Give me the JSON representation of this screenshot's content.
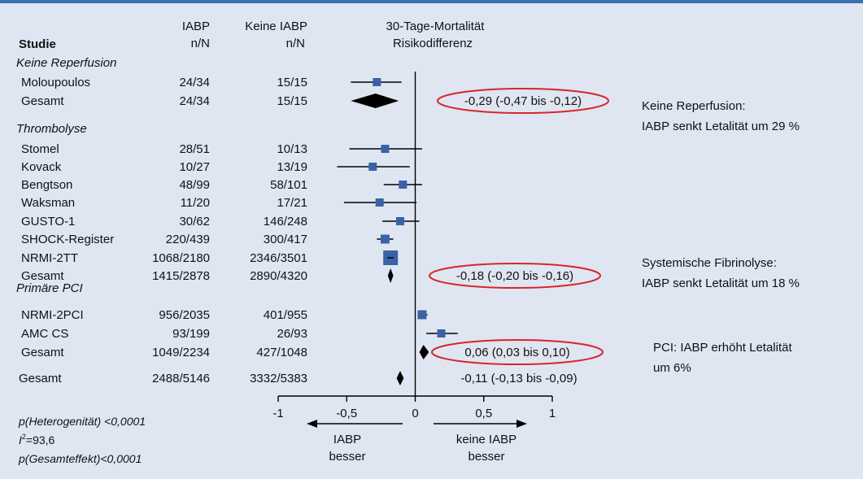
{
  "chart_data": {
    "type": "forest",
    "header": {
      "study": "Studie",
      "iabp_title": "IABP",
      "iabp_sub": "n/N",
      "noiabp_title": "Keine IABP",
      "noiabp_sub": "n/N",
      "effect_title": "30-Tage-Mortalität",
      "effect_sub": "Risikodifferenz"
    },
    "groups": [
      {
        "label": "Keine Reperfusion",
        "rows": [
          {
            "study": "Moloupoulos",
            "iabp": "24/34",
            "no_iabp": "15/15",
            "estimate": -0.28,
            "ci": [
              -0.47,
              -0.1
            ],
            "weight": 1
          },
          {
            "study": "Gesamt",
            "iabp": "24/34",
            "no_iabp": "15/15",
            "estimate": -0.29,
            "ci": [
              -0.47,
              -0.12
            ],
            "summary": true,
            "result_text": "-0,29 (-0,47 bis -0,12)",
            "circled": true
          }
        ]
      },
      {
        "label": "Thrombolyse",
        "rows": [
          {
            "study": "Stomel",
            "iabp": "28/51",
            "no_iabp": "10/13",
            "estimate": -0.22,
            "ci": [
              -0.48,
              0.05
            ],
            "weight": 1
          },
          {
            "study": "Kovack",
            "iabp": "10/27",
            "no_iabp": "13/19",
            "estimate": -0.31,
            "ci": [
              -0.57,
              -0.04
            ],
            "weight": 1
          },
          {
            "study": "Bengtson",
            "iabp": "48/99",
            "no_iabp": "58/101",
            "estimate": -0.09,
            "ci": [
              -0.23,
              0.05
            ],
            "weight": 1
          },
          {
            "study": "Waksman",
            "iabp": "11/20",
            "no_iabp": "17/21",
            "estimate": -0.26,
            "ci": [
              -0.52,
              0.01
            ],
            "weight": 1
          },
          {
            "study": "GUSTO-1",
            "iabp": "30/62",
            "no_iabp": "146/248",
            "estimate": -0.11,
            "ci": [
              -0.24,
              0.03
            ],
            "weight": 1
          },
          {
            "study": "SHOCK-Register",
            "iabp": "220/439",
            "no_iabp": "300/417",
            "estimate": -0.22,
            "ci": [
              -0.28,
              -0.16
            ],
            "weight": 1.1
          },
          {
            "study": "NRMI-2TT",
            "iabp": "1068/2180",
            "no_iabp": "2346/3501",
            "estimate": -0.18,
            "ci": [
              -0.2,
              -0.16
            ],
            "weight": 1.8
          },
          {
            "study": "Gesamt",
            "iabp": "1415/2878",
            "no_iabp": "2890/4320",
            "estimate": -0.18,
            "ci": [
              -0.2,
              -0.16
            ],
            "summary": true,
            "result_text": "-0,18 (-0,20 bis -0,16)",
            "circled": true
          }
        ]
      },
      {
        "label": "Primäre PCI",
        "rows": [
          {
            "study": "NRMI-2PCI",
            "iabp": "956/2035",
            "no_iabp": "401/955",
            "estimate": 0.05,
            "ci": [
              0.02,
              0.09
            ],
            "weight": 1.1
          },
          {
            "study": "AMC CS",
            "iabp": "93/199",
            "no_iabp": "26/93",
            "estimate": 0.19,
            "ci": [
              0.08,
              0.31
            ],
            "weight": 1
          },
          {
            "study": "Gesamt",
            "iabp": "1049/2234",
            "no_iabp": "427/1048",
            "estimate": 0.06,
            "ci": [
              0.03,
              0.1
            ],
            "summary": true,
            "result_text": "0,06 (0,03 bis 0,10)",
            "circled": true
          }
        ]
      }
    ],
    "overall": {
      "study": "Gesamt",
      "iabp": "2488/5146",
      "no_iabp": "3332/5383",
      "estimate": -0.11,
      "ci": [
        -0.13,
        -0.09
      ],
      "result_text": "-0,11 (-0,13 bis -0,09)",
      "circled": false
    },
    "xaxis": {
      "range": [
        -1,
        1
      ],
      "ticks": [
        -1,
        -0.5,
        0,
        0.5,
        1
      ],
      "tick_labels": [
        "-1",
        "-0,5",
        "0",
        "0,5",
        "1"
      ]
    },
    "direction_left": [
      "IABP",
      "besser"
    ],
    "direction_right": [
      "keine IABP",
      "besser"
    ],
    "stats": {
      "heterogeneity": "p(Heterogenität) <0,0001",
      "i2_symbol": "I",
      "i2_sup": "2",
      "i2_value": "=93,6",
      "overall_effect": "p(Gesamteffekt)<0,0001"
    },
    "annotations": [
      {
        "group": 0,
        "lines": [
          "Keine Reperfusion:",
          "IABP senkt Letalität um 29 %"
        ]
      },
      {
        "group": 1,
        "lines": [
          "Systemische Fibrinolyse:",
          "IABP senkt Letalität um 18 %"
        ]
      },
      {
        "group": 2,
        "lines": [
          "PCI: IABP erhöht Letalität",
          "um 6%"
        ]
      }
    ],
    "colors": {
      "marker": "#3a62a8",
      "ellipse": "#d6262a",
      "line": "#000000",
      "background": "#dfe6f2",
      "top_bar": "#3a6fb0"
    }
  }
}
